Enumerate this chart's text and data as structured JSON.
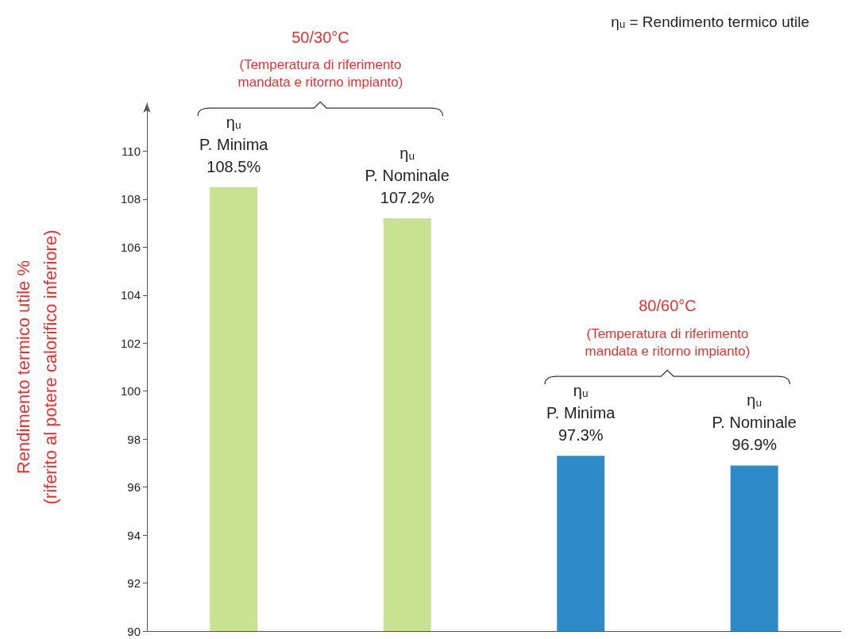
{
  "chart_data": {
    "type": "bar",
    "categories": [
      "ηᵤ\nP. Minima",
      "ηᵤ\nP. Nominale",
      "ηᵤ\nP. Minima",
      "ηᵤ\nP. Nominale"
    ],
    "values": [
      108.5,
      107.2,
      97.3,
      96.9
    ],
    "value_labels": [
      "108.5%",
      "107.2%",
      "97.3%",
      "96.9%"
    ],
    "colors": [
      "#c9e291",
      "#c9e291",
      "#2f8ac8",
      "#2f8ac8"
    ],
    "ylabel": "Rendimento termico utile %\n(riferito al potere calorifico inferiore)",
    "ylim": [
      90,
      112
    ],
    "yticks": [
      90,
      92,
      94,
      96,
      98,
      100,
      102,
      104,
      106,
      108,
      110
    ],
    "tick_labels": "y",
    "grid": false,
    "annotations": [
      "50/30°C",
      "(Temperatura di riferimento\nmandata e ritorno impianto)",
      "80/60°C",
      "(Temperatura di riferimento\nmandata e ritorno impianto)",
      "ηᵤ = Rendimento termico utile"
    ]
  }
}
